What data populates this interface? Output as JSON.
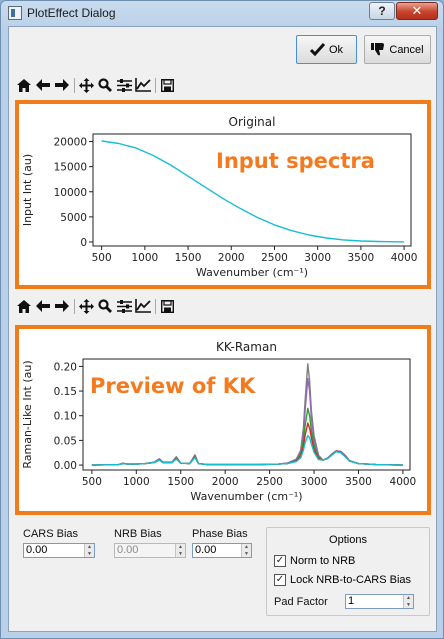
{
  "window": {
    "title": "PlotEffect Dialog",
    "help_label": "?",
    "close_label": "✕"
  },
  "buttons": {
    "ok_label": "Ok",
    "cancel_label": "Cancel"
  },
  "toolbar_icons": [
    "home-icon",
    "back-arrow-icon",
    "forward-arrow-icon",
    "pan-icon",
    "zoom-icon",
    "subplot-config-icon",
    "axes-edit-icon",
    "save-icon"
  ],
  "annotations": {
    "top": "Input spectra",
    "bottom": "Preview of KK"
  },
  "colors": {
    "accent_orange": "#f07d1a",
    "series": [
      "#1f77b4",
      "#ff7f0e",
      "#2ca02c",
      "#d62728",
      "#9467bd",
      "#8c564b",
      "#e377c2",
      "#7f7f7f",
      "#bcbd22",
      "#17becf"
    ]
  },
  "chart_data": [
    {
      "type": "line",
      "title": "Original",
      "xlabel": "Wavenumber (cm⁻¹)",
      "ylabel": "Input Int (au)",
      "xlim": [
        400,
        4080
      ],
      "ylim": [
        -800,
        21500
      ],
      "xticks": [
        500,
        1000,
        1500,
        2000,
        2500,
        3000,
        3500,
        4000
      ],
      "yticks": [
        0,
        5000,
        10000,
        15000,
        20000
      ],
      "grid": false,
      "x": [
        500,
        700,
        900,
        1100,
        1300,
        1500,
        1700,
        1900,
        2100,
        2300,
        2500,
        2700,
        2900,
        3100,
        3300,
        3500,
        3700,
        4000
      ],
      "series": [
        {
          "values": [
            20100,
            19600,
            18700,
            17200,
            15300,
            13100,
            10900,
            8700,
            6700,
            4900,
            3400,
            2250,
            1400,
            800,
            420,
            200,
            90,
            20
          ]
        }
      ]
    },
    {
      "type": "line",
      "title": "KK-Raman",
      "xlabel": "Wavenumber (cm⁻¹)",
      "ylabel": "Raman-Like Int (au)",
      "xlim": [
        400,
        4080
      ],
      "ylim": [
        -0.01,
        0.215
      ],
      "xticks": [
        500,
        1000,
        1500,
        2000,
        2500,
        3000,
        3500,
        4000
      ],
      "yticks": [
        0.0,
        0.05,
        0.1,
        0.15,
        0.2
      ],
      "grid": false,
      "x": [
        500,
        800,
        850,
        900,
        1000,
        1100,
        1200,
        1260,
        1300,
        1400,
        1450,
        1500,
        1600,
        1660,
        1700,
        1800,
        2000,
        2200,
        2400,
        2600,
        2700,
        2800,
        2850,
        2880,
        2900,
        2930,
        2950,
        2970,
        3000,
        3050,
        3100,
        3150,
        3200,
        3250,
        3300,
        3350,
        3400,
        3500,
        3700,
        4000
      ],
      "series": [
        {
          "values": [
            0,
            0.001,
            0.004,
            0.002,
            0.002,
            0.003,
            0.006,
            0.013,
            0.006,
            0.006,
            0.017,
            0.004,
            0.003,
            0.021,
            0.003,
            0.001,
            0.001,
            0.001,
            0.001,
            0.002,
            0.004,
            0.012,
            0.03,
            0.075,
            0.13,
            0.205,
            0.17,
            0.11,
            0.06,
            0.02,
            0.01,
            0.014,
            0.022,
            0.029,
            0.028,
            0.02,
            0.009,
            0.003,
            0.001,
            0
          ]
        },
        {
          "values": [
            0,
            0.001,
            0.003,
            0.002,
            0.002,
            0.003,
            0.005,
            0.012,
            0.005,
            0.005,
            0.015,
            0.004,
            0.003,
            0.019,
            0.003,
            0.001,
            0.001,
            0.001,
            0.001,
            0.002,
            0.004,
            0.011,
            0.026,
            0.065,
            0.11,
            0.175,
            0.15,
            0.095,
            0.05,
            0.018,
            0.01,
            0.014,
            0.022,
            0.029,
            0.027,
            0.019,
            0.008,
            0.003,
            0.001,
            0
          ]
        },
        {
          "values": [
            0,
            0.001,
            0.003,
            0.002,
            0.002,
            0.003,
            0.005,
            0.011,
            0.005,
            0.005,
            0.014,
            0.004,
            0.003,
            0.017,
            0.003,
            0.001,
            0.001,
            0.001,
            0.001,
            0.002,
            0.003,
            0.009,
            0.022,
            0.05,
            0.08,
            0.115,
            0.1,
            0.07,
            0.04,
            0.015,
            0.01,
            0.013,
            0.021,
            0.028,
            0.026,
            0.018,
            0.008,
            0.003,
            0.001,
            0
          ]
        },
        {
          "values": [
            0,
            0.001,
            0.003,
            0.002,
            0.002,
            0.003,
            0.005,
            0.01,
            0.005,
            0.005,
            0.013,
            0.004,
            0.003,
            0.016,
            0.003,
            0.001,
            0.001,
            0.001,
            0.001,
            0.002,
            0.003,
            0.008,
            0.018,
            0.038,
            0.06,
            0.085,
            0.075,
            0.055,
            0.032,
            0.013,
            0.01,
            0.013,
            0.021,
            0.028,
            0.026,
            0.018,
            0.008,
            0.003,
            0.001,
            0
          ]
        },
        {
          "values": [
            0,
            0.001,
            0.003,
            0.002,
            0.002,
            0.003,
            0.005,
            0.01,
            0.005,
            0.005,
            0.012,
            0.004,
            0.003,
            0.015,
            0.003,
            0.001,
            0.001,
            0.001,
            0.001,
            0.002,
            0.003,
            0.007,
            0.015,
            0.03,
            0.045,
            0.06,
            0.055,
            0.042,
            0.026,
            0.011,
            0.01,
            0.013,
            0.02,
            0.027,
            0.025,
            0.017,
            0.008,
            0.003,
            0.001,
            0
          ]
        }
      ]
    }
  ],
  "controls": {
    "cars_bias": {
      "label": "CARS Bias",
      "value": "0.00"
    },
    "nrb_bias": {
      "label": "NRB Bias",
      "value": "0.00"
    },
    "phase_bias": {
      "label": "Phase Bias",
      "value": "0.00"
    },
    "options": {
      "title": "Options",
      "norm_to_nrb": {
        "label": "Norm to NRB",
        "checked": true
      },
      "lock_nrb": {
        "label": "Lock NRB-to-CARS Bias",
        "checked": true
      },
      "pad_factor": {
        "label": "Pad Factor",
        "value": "1"
      }
    }
  }
}
